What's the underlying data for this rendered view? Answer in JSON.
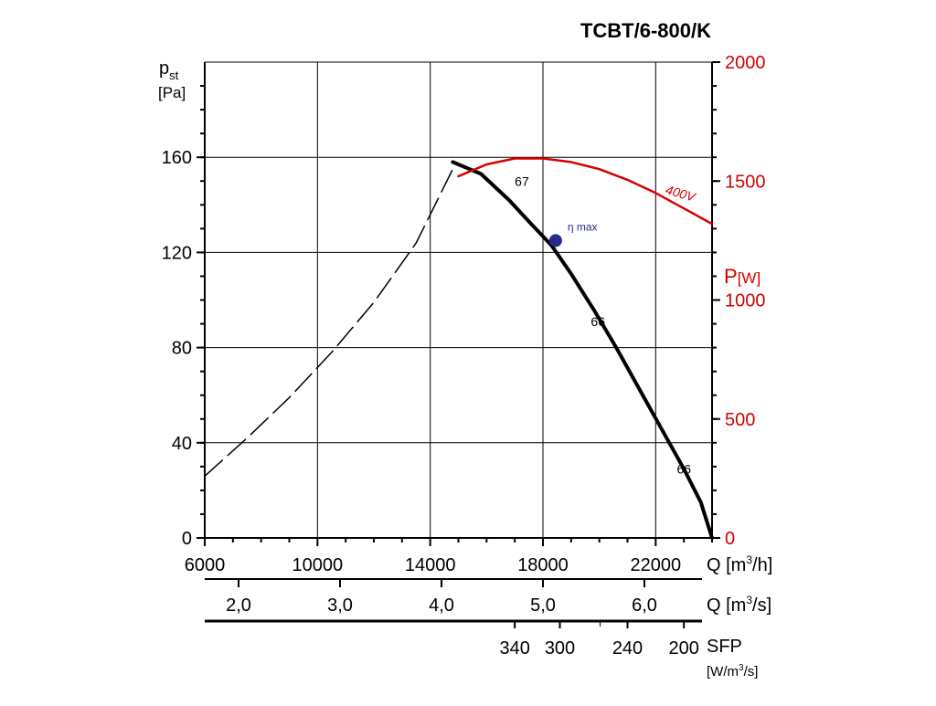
{
  "title": "TCBT/6-800/K",
  "colors": {
    "axis": "#000000",
    "grid": "#000000",
    "pressure_curve": "#000000",
    "power_curve": "#d40000",
    "power_axis": "#d40000",
    "eta_marker": "#2a2a8a"
  },
  "chart_data": {
    "type": "line",
    "title": "TCBT/6-800/K",
    "x": {
      "label": "Q [m³/h]",
      "lim": [
        6000,
        24000
      ],
      "ticks": [
        6000,
        10000,
        14000,
        18000,
        22000
      ],
      "tick_labels": [
        "6000",
        "10000",
        "14000",
        "18000",
        "22000"
      ],
      "grid": true
    },
    "y_left": {
      "label_main": "p",
      "label_sub": "st",
      "label_unit": "[Pa]",
      "lim": [
        0,
        200
      ],
      "ticks": [
        0,
        40,
        80,
        120,
        160
      ],
      "tick_labels": [
        "0",
        "40",
        "80",
        "120",
        "160"
      ],
      "grid": true
    },
    "y_right": {
      "label_main": "P",
      "label_unit": "[W]",
      "lim": [
        0,
        2000
      ],
      "ticks": [
        0,
        500,
        1000,
        1500,
        2000
      ],
      "tick_labels": [
        "0",
        "500",
        "1000",
        "1500",
        "2000"
      ]
    },
    "secondary_axes": [
      {
        "label": "Q [m³/s]",
        "ticks_at_x": [
          7200,
          10800,
          14400,
          18000,
          21600
        ],
        "tick_labels": [
          "2,0",
          "3,0",
          "4,0",
          "5,0",
          "6,0"
        ]
      },
      {
        "label_main": "SFP",
        "label_unit": "[W/m³/s]",
        "ticks_at_x": [
          17000,
          18600,
          21000,
          23000
        ],
        "tick_labels": [
          "340",
          "300",
          "240",
          "200"
        ]
      }
    ],
    "series": [
      {
        "name": "",
        "style": "dashed",
        "x": [
          6000,
          7500,
          9000,
          10500,
          12000,
          13500,
          14800
        ],
        "y": [
          26,
          42,
          59,
          78,
          99,
          124,
          155
        ]
      },
      {
        "name": "",
        "style": "solid",
        "x": [
          14800,
          15800,
          16800,
          17500,
          18300,
          19000,
          19800,
          20600,
          21400,
          22200,
          23000,
          23600,
          24000
        ],
        "y": [
          158,
          153,
          142,
          133,
          123,
          111,
          96,
          80,
          63,
          46,
          29,
          15,
          0
        ]
      },
      {
        "name": "400V",
        "axis": "right",
        "style": "solid",
        "x": [
          15000,
          16000,
          17000,
          18000,
          19000,
          20000,
          21000,
          22000,
          23000,
          24000
        ],
        "y": [
          1520,
          1570,
          1595,
          1595,
          1580,
          1550,
          1505,
          1450,
          1385,
          1320
        ]
      }
    ],
    "markers": [
      {
        "label": "η max",
        "x": 18450,
        "y": 125
      }
    ],
    "annotations": [
      {
        "text": "67",
        "x": 17000,
        "y": 148
      },
      {
        "text": "66",
        "x": 19700,
        "y": 89
      },
      {
        "text": "66",
        "x": 22750,
        "y": 27
      }
    ]
  }
}
